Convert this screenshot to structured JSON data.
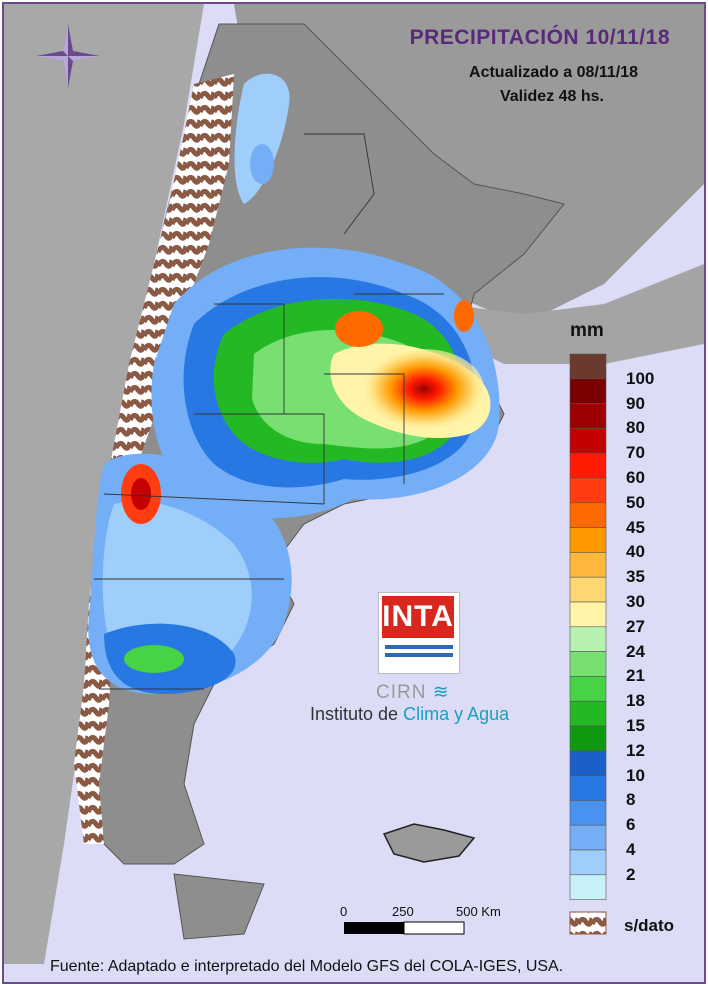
{
  "header": {
    "title": "PRECIPITACIÓN 10/11/18",
    "updated": "Actualizado a 08/11/18",
    "validity": "Validez 48 hs."
  },
  "legend": {
    "unit": "mm",
    "nodata_label": "s/dato",
    "items": [
      {
        "label": "",
        "color": "#6b3a2e"
      },
      {
        "label": "100",
        "color": "#7a0000"
      },
      {
        "label": "90",
        "color": "#9c0000"
      },
      {
        "label": "80",
        "color": "#c40000"
      },
      {
        "label": "70",
        "color": "#ff1a00"
      },
      {
        "label": "60",
        "color": "#ff3d10"
      },
      {
        "label": "50",
        "color": "#ff6a00"
      },
      {
        "label": "45",
        "color": "#ff9900"
      },
      {
        "label": "40",
        "color": "#ffb83a"
      },
      {
        "label": "35",
        "color": "#ffd770"
      },
      {
        "label": "30",
        "color": "#fff4a8"
      },
      {
        "label": "27",
        "color": "#b8f0b0"
      },
      {
        "label": "24",
        "color": "#78e070"
      },
      {
        "label": "21",
        "color": "#46d446"
      },
      {
        "label": "18",
        "color": "#24b824"
      },
      {
        "label": "15",
        "color": "#109a10"
      },
      {
        "label": "12",
        "color": "#1a60c8"
      },
      {
        "label": "10",
        "color": "#2878e4"
      },
      {
        "label": "8",
        "color": "#4a92f0"
      },
      {
        "label": "6",
        "color": "#74aef6"
      },
      {
        "label": "4",
        "color": "#a0cefa"
      },
      {
        "label": "2",
        "color": "#c8f0f8"
      }
    ]
  },
  "scale_bar": {
    "labels": [
      "0",
      "250",
      "500 Km"
    ]
  },
  "logo": {
    "acronym": "INTA",
    "center": "CIRN",
    "institute_prefix": "Instituto de",
    "institute_accent": "Clima y Agua"
  },
  "footer": {
    "source": "Fuente: Adaptado e interpretado del Modelo GFS del COLA-IGES, USA."
  },
  "colors": {
    "ocean": "#dcdcf6",
    "land": "#8e8e8e",
    "frame": "#6b4a8a",
    "no_data": "#8a5a44"
  }
}
